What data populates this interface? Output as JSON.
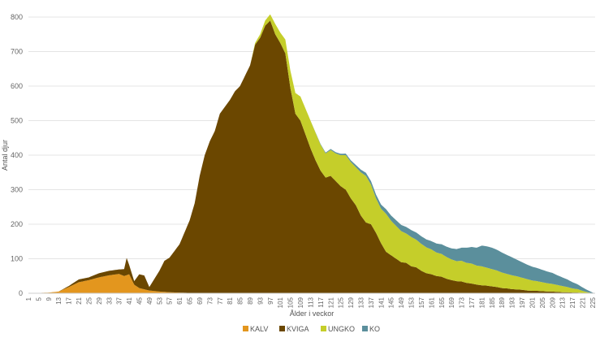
{
  "chart_data": {
    "type": "area",
    "stacked": true,
    "xlabel": "Ålder i veckor",
    "ylabel": "Antal djur",
    "ylim": [
      0,
      800
    ],
    "yticks": [
      0,
      100,
      200,
      300,
      400,
      500,
      600,
      700,
      800
    ],
    "xlim": [
      1,
      226
    ],
    "xticks": [
      1,
      5,
      9,
      13,
      17,
      21,
      25,
      29,
      33,
      37,
      41,
      45,
      49,
      53,
      57,
      61,
      65,
      69,
      73,
      77,
      81,
      85,
      89,
      93,
      97,
      101,
      105,
      109,
      113,
      117,
      121,
      125,
      129,
      133,
      137,
      141,
      145,
      149,
      153,
      157,
      161,
      165,
      169,
      173,
      177,
      181,
      185,
      189,
      193,
      197,
      201,
      205,
      209,
      213,
      217,
      221,
      225
    ],
    "grid": "horizontal",
    "legend_position": "bottom",
    "series": [
      {
        "name": "KALV",
        "color": "#E3961E",
        "points": [
          [
            1,
            0
          ],
          [
            9,
            2
          ],
          [
            13,
            5
          ],
          [
            17,
            18
          ],
          [
            21,
            32
          ],
          [
            25,
            38
          ],
          [
            29,
            46
          ],
          [
            33,
            52
          ],
          [
            37,
            56
          ],
          [
            39,
            50
          ],
          [
            41,
            55
          ],
          [
            43,
            25
          ],
          [
            45,
            15
          ],
          [
            49,
            8
          ],
          [
            53,
            5
          ],
          [
            57,
            3
          ],
          [
            61,
            2
          ],
          [
            65,
            1
          ],
          [
            69,
            0
          ],
          [
            226,
            0
          ]
        ]
      },
      {
        "name": "KVIGA",
        "color": "#6B4700",
        "points": [
          [
            1,
            0
          ],
          [
            9,
            0
          ],
          [
            13,
            0
          ],
          [
            17,
            3
          ],
          [
            21,
            8
          ],
          [
            25,
            8
          ],
          [
            29,
            12
          ],
          [
            33,
            13
          ],
          [
            37,
            13
          ],
          [
            39,
            20
          ],
          [
            40,
            50
          ],
          [
            41,
            27
          ],
          [
            43,
            10
          ],
          [
            45,
            40
          ],
          [
            47,
            40
          ],
          [
            49,
            10
          ],
          [
            51,
            35
          ],
          [
            53,
            60
          ],
          [
            55,
            90
          ],
          [
            57,
            100
          ],
          [
            61,
            140
          ],
          [
            65,
            210
          ],
          [
            67,
            260
          ],
          [
            69,
            340
          ],
          [
            71,
            400
          ],
          [
            73,
            440
          ],
          [
            75,
            470
          ],
          [
            77,
            520
          ],
          [
            79,
            540
          ],
          [
            81,
            560
          ],
          [
            83,
            585
          ],
          [
            85,
            600
          ],
          [
            87,
            630
          ],
          [
            89,
            660
          ],
          [
            91,
            720
          ],
          [
            93,
            740
          ],
          [
            95,
            775
          ],
          [
            97,
            790
          ],
          [
            99,
            750
          ],
          [
            101,
            725
          ],
          [
            103,
            695
          ],
          [
            105,
            595
          ],
          [
            107,
            520
          ],
          [
            109,
            500
          ],
          [
            111,
            460
          ],
          [
            113,
            420
          ],
          [
            115,
            385
          ],
          [
            117,
            355
          ],
          [
            119,
            335
          ],
          [
            121,
            340
          ],
          [
            123,
            325
          ],
          [
            125,
            310
          ],
          [
            127,
            300
          ],
          [
            129,
            275
          ],
          [
            131,
            255
          ],
          [
            133,
            225
          ],
          [
            135,
            205
          ],
          [
            137,
            200
          ],
          [
            139,
            175
          ],
          [
            141,
            145
          ],
          [
            143,
            120
          ],
          [
            145,
            110
          ],
          [
            147,
            100
          ],
          [
            149,
            90
          ],
          [
            151,
            88
          ],
          [
            153,
            78
          ],
          [
            155,
            75
          ],
          [
            157,
            65
          ],
          [
            159,
            58
          ],
          [
            161,
            55
          ],
          [
            163,
            50
          ],
          [
            165,
            48
          ],
          [
            167,
            42
          ],
          [
            169,
            38
          ],
          [
            171,
            35
          ],
          [
            173,
            34
          ],
          [
            175,
            30
          ],
          [
            177,
            28
          ],
          [
            179,
            25
          ],
          [
            181,
            23
          ],
          [
            183,
            22
          ],
          [
            185,
            20
          ],
          [
            187,
            18
          ],
          [
            189,
            15
          ],
          [
            191,
            14
          ],
          [
            193,
            12
          ],
          [
            195,
            11
          ],
          [
            197,
            10
          ],
          [
            199,
            8
          ],
          [
            201,
            7
          ],
          [
            203,
            7
          ],
          [
            205,
            6
          ],
          [
            207,
            5
          ],
          [
            209,
            5
          ],
          [
            211,
            4
          ],
          [
            213,
            3
          ],
          [
            215,
            3
          ],
          [
            217,
            2
          ],
          [
            219,
            2
          ],
          [
            221,
            1
          ],
          [
            223,
            0
          ],
          [
            226,
            0
          ]
        ]
      },
      {
        "name": "UNGKO",
        "color": "#C5CE2A",
        "points": [
          [
            1,
            0
          ],
          [
            89,
            0
          ],
          [
            91,
            5
          ],
          [
            93,
            10
          ],
          [
            95,
            15
          ],
          [
            97,
            18
          ],
          [
            99,
            30
          ],
          [
            101,
            30
          ],
          [
            103,
            40
          ],
          [
            105,
            50
          ],
          [
            107,
            60
          ],
          [
            109,
            70
          ],
          [
            111,
            75
          ],
          [
            113,
            80
          ],
          [
            115,
            80
          ],
          [
            117,
            75
          ],
          [
            119,
            70
          ],
          [
            121,
            75
          ],
          [
            123,
            80
          ],
          [
            125,
            90
          ],
          [
            127,
            100
          ],
          [
            129,
            105
          ],
          [
            131,
            110
          ],
          [
            133,
            125
          ],
          [
            135,
            135
          ],
          [
            137,
            115
          ],
          [
            139,
            100
          ],
          [
            141,
            100
          ],
          [
            143,
            110
          ],
          [
            145,
            100
          ],
          [
            147,
            95
          ],
          [
            149,
            90
          ],
          [
            151,
            85
          ],
          [
            153,
            85
          ],
          [
            155,
            80
          ],
          [
            157,
            78
          ],
          [
            159,
            75
          ],
          [
            161,
            72
          ],
          [
            163,
            68
          ],
          [
            165,
            66
          ],
          [
            167,
            63
          ],
          [
            169,
            60
          ],
          [
            171,
            58
          ],
          [
            173,
            60
          ],
          [
            175,
            58
          ],
          [
            177,
            58
          ],
          [
            179,
            55
          ],
          [
            181,
            55
          ],
          [
            183,
            52
          ],
          [
            185,
            50
          ],
          [
            187,
            48
          ],
          [
            189,
            45
          ],
          [
            191,
            42
          ],
          [
            193,
            40
          ],
          [
            195,
            38
          ],
          [
            197,
            35
          ],
          [
            199,
            33
          ],
          [
            201,
            30
          ],
          [
            203,
            28
          ],
          [
            205,
            26
          ],
          [
            207,
            24
          ],
          [
            209,
            22
          ],
          [
            211,
            20
          ],
          [
            213,
            18
          ],
          [
            215,
            15
          ],
          [
            217,
            12
          ],
          [
            219,
            10
          ],
          [
            221,
            6
          ],
          [
            223,
            3
          ],
          [
            225,
            0
          ],
          [
            226,
            0
          ]
        ]
      },
      {
        "name": "KO",
        "color": "#5B8F9C",
        "points": [
          [
            1,
            0
          ],
          [
            113,
            0
          ],
          [
            117,
            2
          ],
          [
            121,
            3
          ],
          [
            125,
            4
          ],
          [
            129,
            5
          ],
          [
            133,
            8
          ],
          [
            137,
            10
          ],
          [
            141,
            12
          ],
          [
            145,
            15
          ],
          [
            149,
            18
          ],
          [
            153,
            20
          ],
          [
            157,
            22
          ],
          [
            161,
            24
          ],
          [
            165,
            28
          ],
          [
            169,
            32
          ],
          [
            173,
            38
          ],
          [
            175,
            44
          ],
          [
            177,
            48
          ],
          [
            179,
            52
          ],
          [
            181,
            60
          ],
          [
            183,
            62
          ],
          [
            185,
            62
          ],
          [
            187,
            60
          ],
          [
            189,
            58
          ],
          [
            191,
            55
          ],
          [
            193,
            52
          ],
          [
            195,
            48
          ],
          [
            197,
            45
          ],
          [
            199,
            42
          ],
          [
            201,
            40
          ],
          [
            203,
            38
          ],
          [
            205,
            36
          ],
          [
            207,
            34
          ],
          [
            209,
            32
          ],
          [
            211,
            28
          ],
          [
            213,
            25
          ],
          [
            215,
            22
          ],
          [
            217,
            18
          ],
          [
            219,
            14
          ],
          [
            221,
            10
          ],
          [
            223,
            6
          ],
          [
            225,
            2
          ],
          [
            226,
            0
          ]
        ]
      }
    ]
  }
}
